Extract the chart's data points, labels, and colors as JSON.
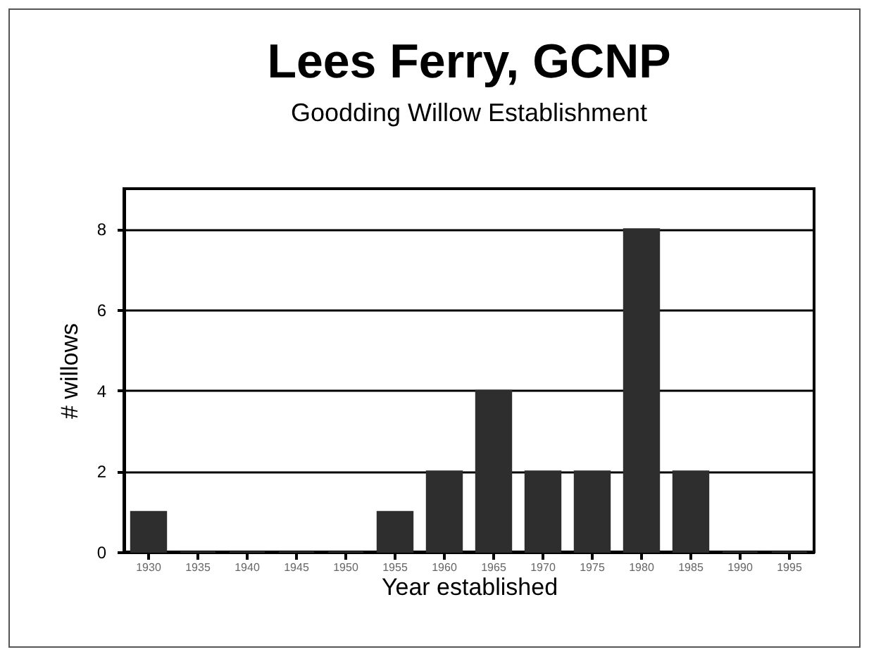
{
  "chart_data": {
    "type": "bar",
    "title": "Lees Ferry, GCNP",
    "subtitle": "Goodding Willow Establishment",
    "xlabel": "Year established",
    "ylabel": "# willows",
    "categories": [
      "1930",
      "1935",
      "1940",
      "1945",
      "1950",
      "1955",
      "1960",
      "1965",
      "1970",
      "1975",
      "1980",
      "1985",
      "1990",
      "1995"
    ],
    "values": [
      1,
      0,
      0,
      0,
      0,
      1,
      2,
      4,
      2,
      2,
      8,
      2,
      0,
      0
    ],
    "color": "#2e2e2e",
    "ylim": [
      0,
      9
    ],
    "yticks": [
      0,
      2,
      4,
      6,
      8
    ],
    "grid": "y"
  }
}
